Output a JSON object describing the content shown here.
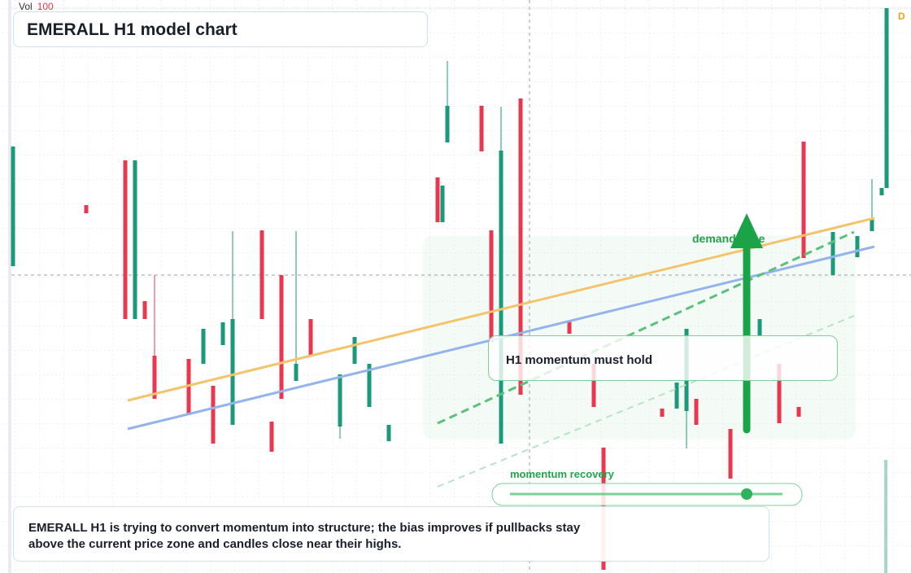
{
  "chart_data": {
    "type": "candlestick",
    "title": "EMERALL H1 model chart",
    "volume_label": "Vol",
    "volume_value": 100,
    "flag": "D",
    "annotations": {
      "demand": "demand zone",
      "hold": "H1 momentum must hold",
      "recovery": "momentum recovery"
    },
    "note": "EMERALL H1 is trying to convert momentum into structure; the bias improves if pullbacks stay above the current price zone and candles close near their highs.",
    "up_color": "#1a9a7a",
    "down_color": "#e8374f",
    "xlim": [
      0,
      180
    ],
    "ylim": [
      0,
      704
    ],
    "x": [
      0,
      15,
      23,
      25,
      27,
      29,
      36,
      39,
      41,
      43,
      45,
      51,
      53,
      55,
      58,
      61,
      67,
      70,
      73,
      77,
      87,
      88,
      89,
      96,
      98,
      100,
      104,
      114,
      119,
      121,
      133,
      136,
      138,
      140,
      147,
      153,
      157,
      161,
      162,
      168,
      173,
      176,
      178,
      179
    ],
    "open": [
      377,
      452,
      507,
      312,
      334,
      267,
      263,
      257,
      230,
      280,
      182,
      421,
      186,
      366,
      236,
      312,
      180,
      257,
      204,
      162,
      486,
      431,
      529,
      574,
      421,
      159,
      583,
      309,
      257,
      154,
      202,
      202,
      199,
      214,
      177,
      292,
      257,
      204,
      530,
      366,
      388,
      420,
      464,
      473
    ],
    "high": [
      524,
      452,
      507,
      507,
      334,
      366,
      263,
      300,
      230,
      308,
      420,
      421,
      186,
      366,
      420,
      312,
      244,
      290,
      257,
      182,
      486,
      476,
      629,
      574,
      421,
      573,
      583,
      309,
      257,
      154,
      202,
      234,
      300,
      214,
      177,
      312,
      257,
      204,
      530,
      419,
      414,
      484,
      473,
      694
    ],
    "low": [
      377,
      442,
      312,
      312,
      312,
      214,
      194,
      257,
      159,
      280,
      182,
      312,
      149,
      214,
      236,
      267,
      165,
      257,
      204,
      162,
      431,
      431,
      529,
      518,
      284,
      159,
      219,
      294,
      204,
      4,
      192,
      202,
      153,
      182,
      116,
      292,
      184,
      192,
      387,
      366,
      388,
      420,
      464,
      473
    ],
    "close": [
      524,
      442,
      312,
      507,
      312,
      214,
      194,
      300,
      159,
      308,
      312,
      312,
      149,
      214,
      257,
      267,
      244,
      290,
      257,
      182,
      431,
      476,
      574,
      518,
      284,
      519,
      219,
      294,
      204,
      4,
      192,
      234,
      300,
      182,
      116,
      312,
      184,
      192,
      387,
      419,
      414,
      434,
      473,
      694
    ]
  }
}
